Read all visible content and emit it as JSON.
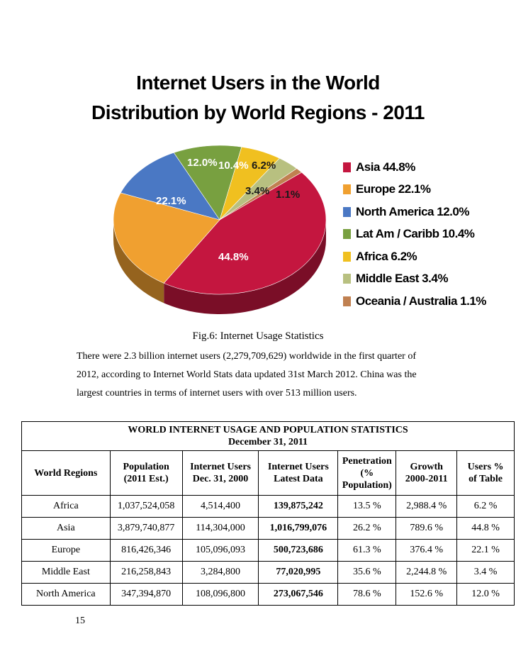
{
  "chart": {
    "title_line1": "Internet Users in the World",
    "title_line2": "Distribution by World Regions - 2011"
  },
  "chart_data": {
    "type": "pie",
    "slices": [
      {
        "label": "Asia",
        "value": 44.8,
        "legend": "Asia 44.8%",
        "data_label": "44.8%",
        "color": "#c4163f"
      },
      {
        "label": "Europe",
        "value": 22.1,
        "legend": "Europe 22.1%",
        "data_label": "22.1%",
        "color": "#f0a030"
      },
      {
        "label": "North America",
        "value": 12.0,
        "legend": "North America 12.0%",
        "data_label": "12.0%",
        "color": "#4a78c4"
      },
      {
        "label": "Lat Am / Caribb",
        "value": 10.4,
        "legend": "Lat Am / Caribb 10.4%",
        "data_label": "10.4%",
        "color": "#78a040"
      },
      {
        "label": "Africa",
        "value": 6.2,
        "legend": "Africa 6.2%",
        "data_label": "6.2%",
        "color": "#f0c020"
      },
      {
        "label": "Middle East",
        "value": 3.4,
        "legend": "Middle East 3.4%",
        "data_label": "3.4%",
        "color": "#b8c080"
      },
      {
        "label": "Oceania / Australia",
        "value": 1.1,
        "legend": "Oceania / Australia 1.1%",
        "data_label": "1.1%",
        "color": "#c08050"
      }
    ]
  },
  "caption": "Fig.6: Internet Usage Statistics",
  "paragraph": {
    "line1": "There were 2.3 billion internet users (2,279,709,629) worldwide in the first quarter of",
    "line2": "2012, according to Internet World Stats data updated 31st March 2012. China was the",
    "line3": "largest countries in terms of internet users with over 513 million users."
  },
  "table": {
    "title_line1": "WORLD INTERNET USAGE AND POPULATION STATISTICS",
    "title_line2": "December 31, 2011",
    "headers": [
      {
        "l1": "World Regions",
        "l2": ""
      },
      {
        "l1": "Population",
        "l2": "(2011 Est.)"
      },
      {
        "l1": "Internet Users",
        "l2": "Dec. 31, 2000"
      },
      {
        "l1": "Internet Users",
        "l2": "Latest Data"
      },
      {
        "l1": "Penetration",
        "l2": "(%",
        "l3": "Population)"
      },
      {
        "l1": "Growth",
        "l2": "2000-2011"
      },
      {
        "l1": "Users %",
        "l2": "of Table"
      }
    ],
    "rows": [
      [
        "Africa",
        "1,037,524,058",
        "4,514,400",
        "139,875,242",
        "13.5 %",
        "2,988.4 %",
        "6.2 %"
      ],
      [
        "Asia",
        "3,879,740,877",
        "114,304,000",
        "1,016,799,076",
        "26.2 %",
        "789.6 %",
        "44.8 %"
      ],
      [
        "Europe",
        "816,426,346",
        "105,096,093",
        "500,723,686",
        "61.3 %",
        "376.4 %",
        "22.1 %"
      ],
      [
        "Middle East",
        "216,258,843",
        "3,284,800",
        "77,020,995",
        "35.6 %",
        "2,244.8 %",
        "3.4 %"
      ],
      [
        "North America",
        "347,394,870",
        "108,096,800",
        "273,067,546",
        "78.6 %",
        "152.6 %",
        "12.0 %"
      ]
    ]
  },
  "page_number": "15"
}
